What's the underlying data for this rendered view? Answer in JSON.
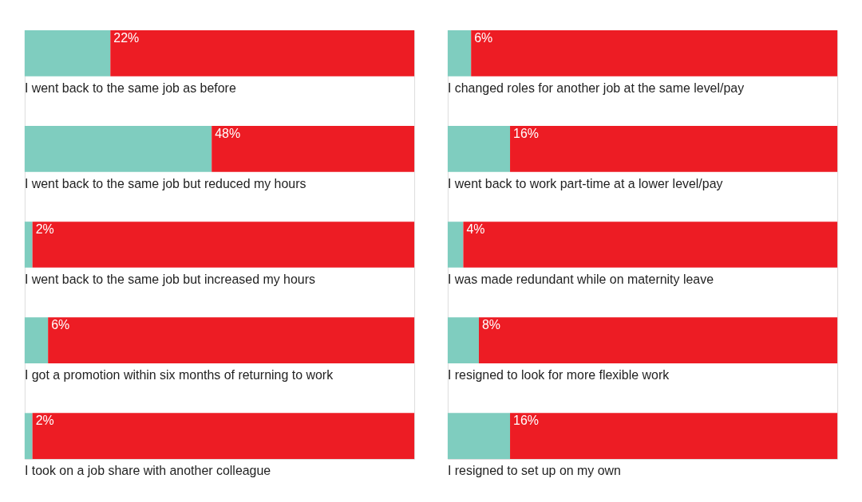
{
  "chart_data": [
    {
      "type": "bar",
      "orientation": "horizontal",
      "stacked": true,
      "legend": false,
      "xlim": [
        0,
        100
      ],
      "categories": [
        "I went back to the same job as before",
        "I went back to the same job but reduced my hours",
        "I went back to the same job but increased my hours",
        "I got a promotion within six months of returning to work",
        "I took on a job share with another colleague"
      ],
      "series": [
        {
          "color": "#7fcdbf",
          "values": [
            22,
            48,
            2,
            6,
            2
          ],
          "value_labels": [
            "22%",
            "48%",
            "2%",
            "6%",
            "2%"
          ]
        },
        {
          "color": "#ed1c24",
          "values": [
            78,
            52,
            98,
            94,
            98
          ]
        }
      ]
    },
    {
      "type": "bar",
      "orientation": "horizontal",
      "stacked": true,
      "legend": false,
      "xlim": [
        0,
        100
      ],
      "categories": [
        "I changed roles for another job at the same level/pay",
        "I went back to work part-time at a lower level/pay",
        "I was made redundant while on maternity leave",
        "I resigned to look for more flexible work",
        "I resigned to set up on my own"
      ],
      "series": [
        {
          "color": "#7fcdbf",
          "values": [
            6,
            16,
            4,
            8,
            16
          ],
          "value_labels": [
            "6%",
            "16%",
            "4%",
            "8%",
            "16%"
          ]
        },
        {
          "color": "#ed1c24",
          "values": [
            94,
            84,
            96,
            92,
            84
          ]
        }
      ]
    }
  ]
}
